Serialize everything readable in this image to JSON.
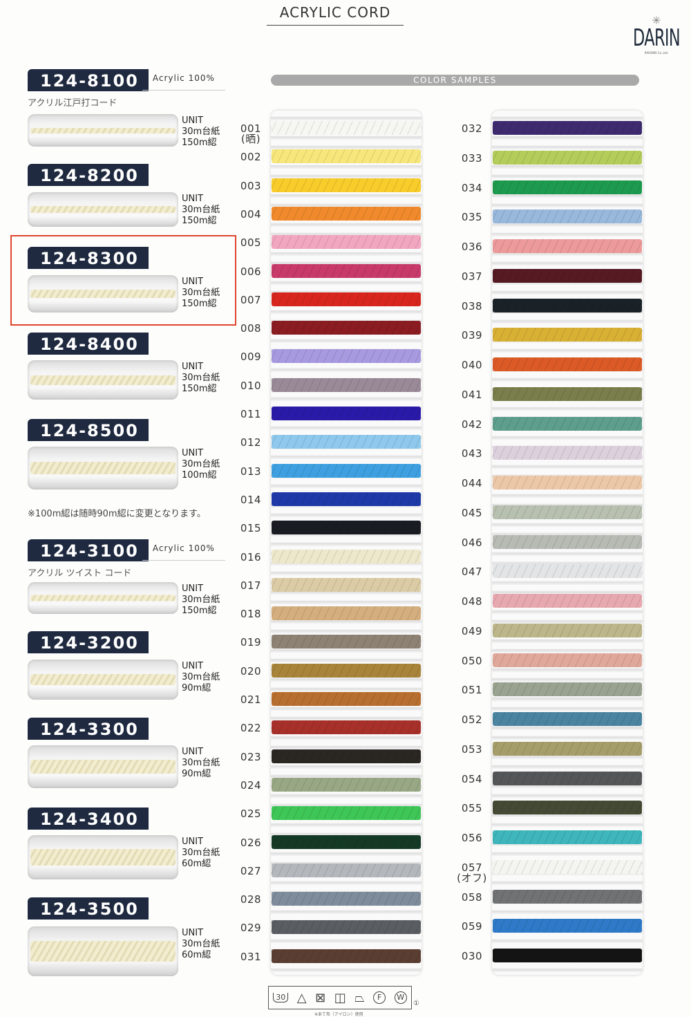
{
  "header": {
    "title": "ACRYLIC CORD",
    "logo_text": "DARIN",
    "logo_sub": "RAISONS Co.,Ltd."
  },
  "color_samples_label": "COLOR SAMPLES",
  "products": [
    {
      "code": "124-8100",
      "fiber": "Acrylic  100%",
      "name_jp": "アクリル江戸打コード",
      "unit": [
        "UNIT",
        "30m台紙",
        "150m綛"
      ]
    },
    {
      "code": "124-8200",
      "unit": [
        "UNIT",
        "30m台紙",
        "150m綛"
      ]
    },
    {
      "code": "124-8300",
      "unit": [
        "UNIT",
        "30m台紙",
        "150m綛"
      ],
      "highlighted": true
    },
    {
      "code": "124-8400",
      "unit": [
        "UNIT",
        "30m台紙",
        "150m綛"
      ]
    },
    {
      "code": "124-8500",
      "unit": [
        "UNIT",
        "30m台紙",
        "100m綛"
      ]
    },
    {
      "code": "124-3100",
      "fiber": "Acrylic  100%",
      "name_jp": "アクリル ツイスト コード",
      "unit": [
        "UNIT",
        "30m台紙",
        "150m綛"
      ]
    },
    {
      "code": "124-3200",
      "unit": [
        "UNIT",
        "30m台紙",
        "90m綛"
      ]
    },
    {
      "code": "124-3300",
      "unit": [
        "UNIT",
        "30m台紙",
        "90m綛"
      ]
    },
    {
      "code": "124-3400",
      "unit": [
        "UNIT",
        "30m台紙",
        "60m綛"
      ]
    },
    {
      "code": "124-3500",
      "unit": [
        "UNIT",
        "30m台紙",
        "60m綛"
      ]
    }
  ],
  "note": "※100m綛は随時90m綛に変更となります。",
  "swatches_left": [
    {
      "code": "001",
      "sub": "(晒)",
      "color": "#f7f7f2"
    },
    {
      "code": "002",
      "color": "#f7e77a"
    },
    {
      "code": "003",
      "color": "#f8cc2a"
    },
    {
      "code": "004",
      "color": "#f08a2c"
    },
    {
      "code": "005",
      "color": "#f2a6c0"
    },
    {
      "code": "006",
      "color": "#c83a6a"
    },
    {
      "code": "007",
      "color": "#d8261e"
    },
    {
      "code": "008",
      "color": "#8a1c22"
    },
    {
      "code": "009",
      "color": "#a79ae0"
    },
    {
      "code": "010",
      "color": "#9a8a98"
    },
    {
      "code": "011",
      "color": "#2a1aa8"
    },
    {
      "code": "012",
      "color": "#8ec8ec"
    },
    {
      "code": "013",
      "color": "#3ea0e0"
    },
    {
      "code": "014",
      "color": "#1e3aa8"
    },
    {
      "code": "015",
      "color": "#1a1c24"
    },
    {
      "code": "016",
      "color": "#ede8cc"
    },
    {
      "code": "017",
      "color": "#dccca6"
    },
    {
      "code": "018",
      "color": "#d4ae7e"
    },
    {
      "code": "019",
      "color": "#8e8274"
    },
    {
      "code": "020",
      "color": "#a8843a"
    },
    {
      "code": "021",
      "color": "#b86e2e"
    },
    {
      "code": "022",
      "color": "#a8302a"
    },
    {
      "code": "023",
      "color": "#2a2622"
    },
    {
      "code": "024",
      "color": "#98a884"
    },
    {
      "code": "025",
      "color": "#3ec656"
    },
    {
      "code": "026",
      "color": "#143a26"
    },
    {
      "code": "027",
      "color": "#b4b8bc"
    },
    {
      "code": "028",
      "color": "#7e8c9c"
    },
    {
      "code": "029",
      "color": "#5a5e62"
    },
    {
      "code": "031",
      "color": "#5a3e32"
    }
  ],
  "swatches_right": [
    {
      "code": "032",
      "color": "#3e2a6e"
    },
    {
      "code": "033",
      "color": "#b4cc5a"
    },
    {
      "code": "034",
      "color": "#1e9a4e"
    },
    {
      "code": "035",
      "color": "#98b8dc"
    },
    {
      "code": "036",
      "color": "#ec9a9a"
    },
    {
      "code": "037",
      "color": "#561a22"
    },
    {
      "code": "038",
      "color": "#1a2228"
    },
    {
      "code": "039",
      "color": "#d8b034"
    },
    {
      "code": "040",
      "color": "#dc5a26"
    },
    {
      "code": "041",
      "color": "#7a7e4c"
    },
    {
      "code": "042",
      "color": "#5e9e8c"
    },
    {
      "code": "043",
      "color": "#dcd0dc"
    },
    {
      "code": "044",
      "color": "#ecc8a8"
    },
    {
      "code": "045",
      "color": "#b8c0b0"
    },
    {
      "code": "046",
      "color": "#b8bab4"
    },
    {
      "code": "047",
      "color": "#e2e4e6"
    },
    {
      "code": "048",
      "color": "#e8a8b0"
    },
    {
      "code": "049",
      "color": "#bcb68a"
    },
    {
      "code": "050",
      "color": "#e0a89a"
    },
    {
      "code": "051",
      "color": "#9aa290"
    },
    {
      "code": "052",
      "color": "#4a84a0"
    },
    {
      "code": "053",
      "color": "#a69e6a"
    },
    {
      "code": "054",
      "color": "#545658"
    },
    {
      "code": "055",
      "color": "#444a34"
    },
    {
      "code": "056",
      "color": "#3eb6bc"
    },
    {
      "code": "057",
      "sub": "(オフ)",
      "color": "#f4f4f0"
    },
    {
      "code": "058",
      "color": "#707274"
    },
    {
      "code": "059",
      "color": "#2e7ac8"
    },
    {
      "code": "030",
      "color": "#141414"
    }
  ],
  "care": {
    "icons": [
      "wash-30-icon",
      "bleach-icon",
      "no-tumble-dry-icon",
      "line-dry-icon",
      "iron-low-icon",
      "dryclean-f-icon",
      "wetclean-w-icon"
    ],
    "wash_temp": "30",
    "dryclean_letter": "F",
    "wetclean_letter": "W",
    "note": "※あて布（アイロン）使用",
    "footnote_mark": "①"
  }
}
